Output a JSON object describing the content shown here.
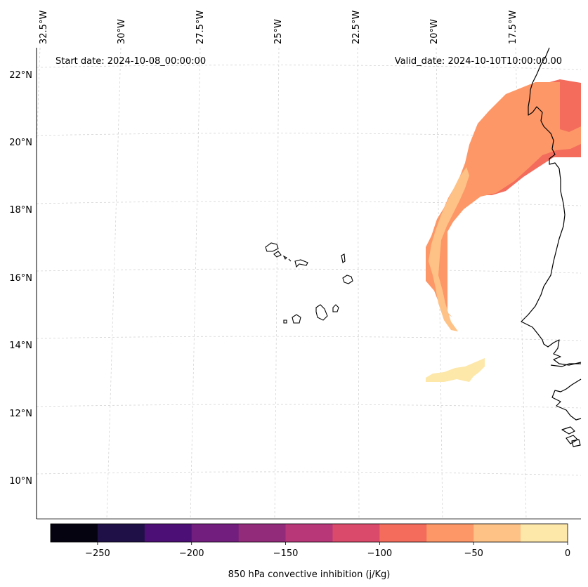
{
  "map": {
    "start_date": "Start date: 2024-10-08_00:00:00",
    "valid_date": "Valid_date: 2024-10-10T10:00:00.00",
    "lat_labels": [
      "22°N",
      "20°N",
      "18°N",
      "16°N",
      "14°N",
      "12°N",
      "10°N"
    ],
    "lon_labels": [
      "32.5°W",
      "30°W",
      "27.5°W",
      "25°W",
      "22.5°W",
      "20°W",
      "17.5°W"
    ]
  },
  "colorbar": {
    "label": "850 hPa convective inhibition (j/Kg)",
    "tick_labels": [
      "−250",
      "−200",
      "−150",
      "−100",
      "−50",
      "0"
    ],
    "tick_values": [
      -250,
      -200,
      -150,
      -100,
      -50,
      0
    ],
    "bounds": [
      -275,
      0
    ],
    "colors": [
      "#05030f",
      "#1f1147",
      "#4c0f75",
      "#711e7e",
      "#932b7b",
      "#b73779",
      "#da4a6a",
      "#f36c5c",
      "#fd9767",
      "#fec286",
      "#fde7a9"
    ]
  },
  "colors": {
    "cin_-100_-75": "#f36c5c",
    "cin_-75_-50": "#fd9767",
    "cin_-50_-25": "#fec286",
    "cin_-25_0": "#fde7a9"
  }
}
